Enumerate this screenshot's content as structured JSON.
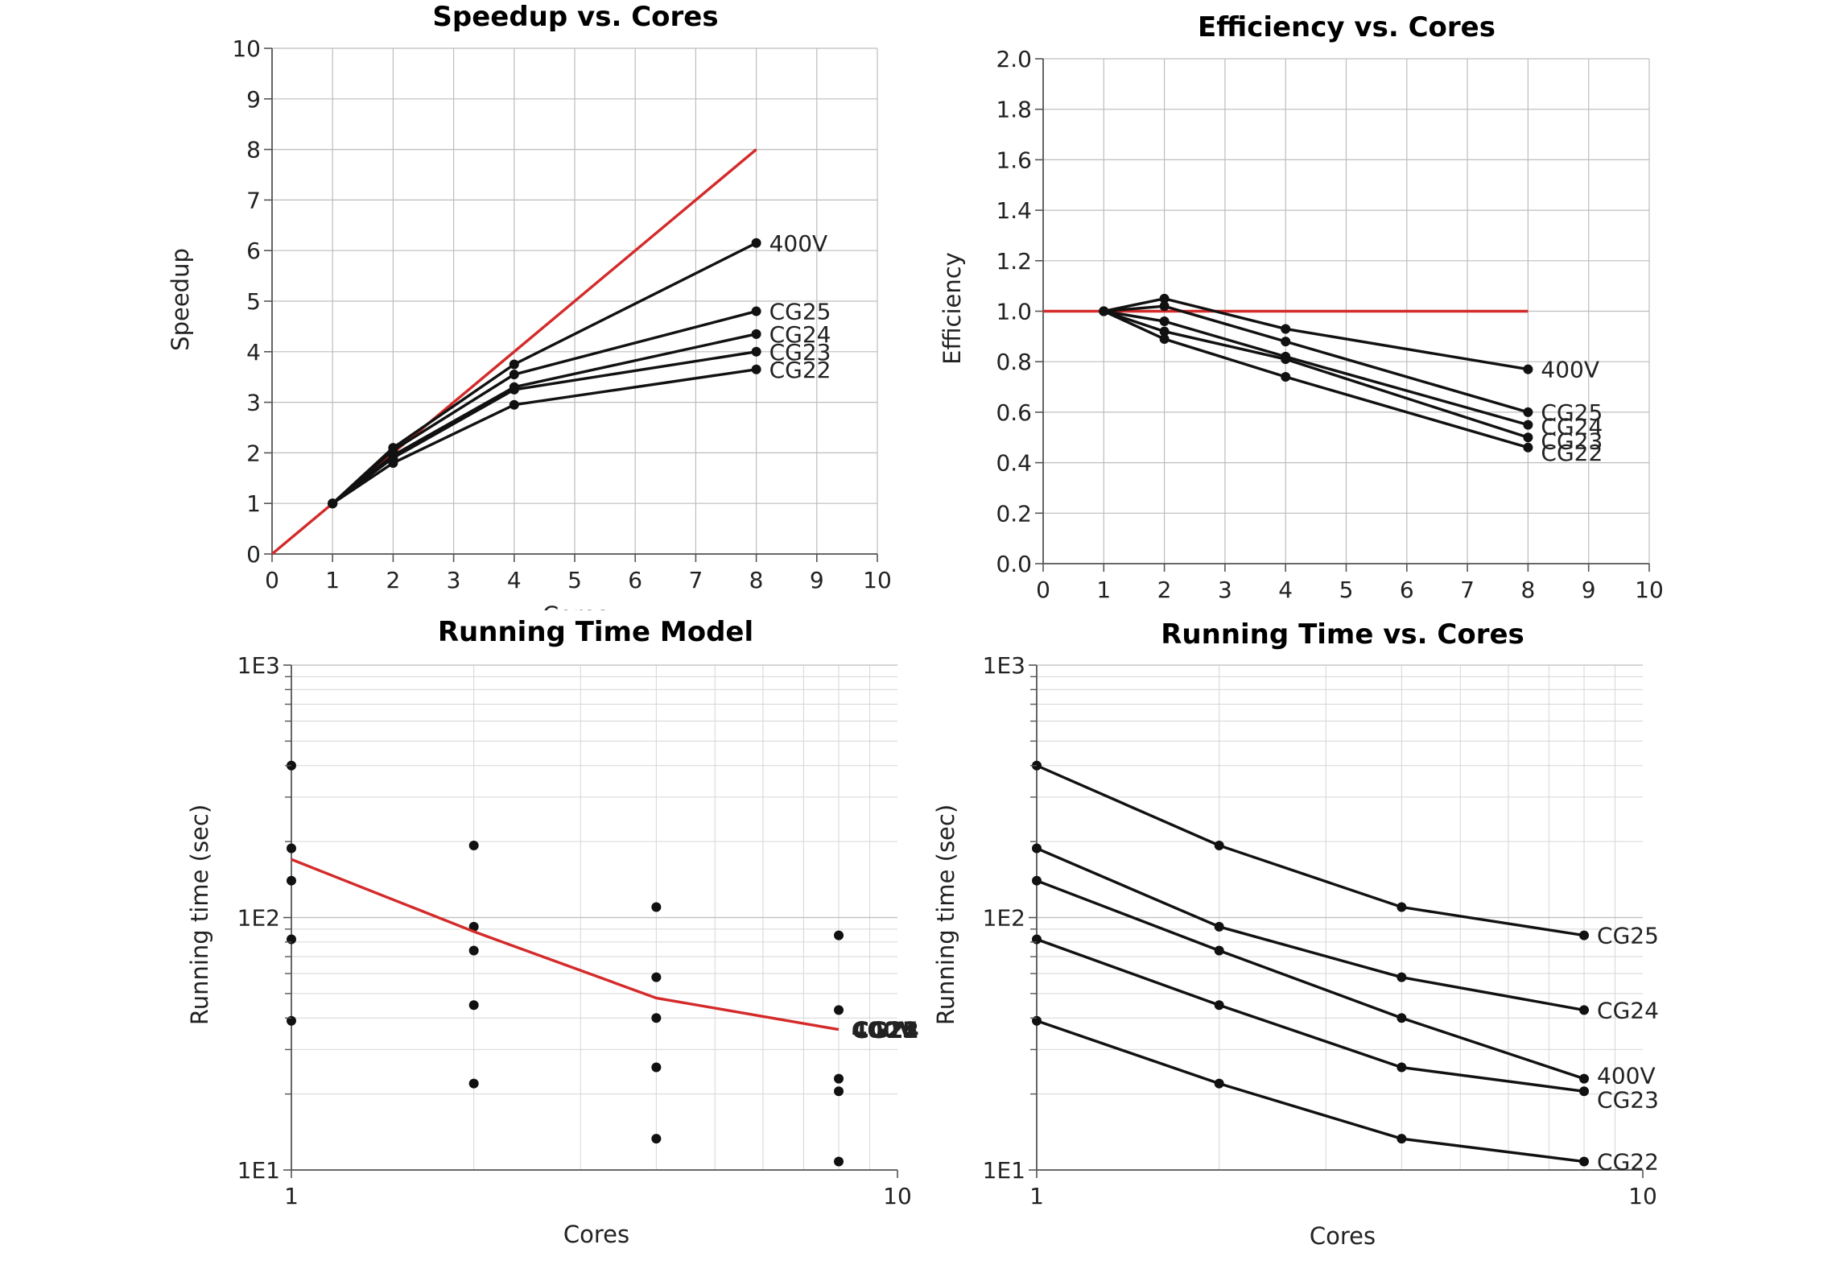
{
  "chart_data": [
    {
      "id": "speedup",
      "type": "line",
      "title": "Speedup vs. Cores",
      "xlabel": "Cores",
      "ylabel": "Speedup",
      "xscale": "linear",
      "yscale": "linear",
      "xlim": [
        0,
        10
      ],
      "ylim": [
        0,
        10
      ],
      "xticks": [
        0,
        1,
        2,
        3,
        4,
        5,
        6,
        7,
        8,
        9,
        10
      ],
      "yticks": [
        0,
        1,
        2,
        3,
        4,
        5,
        6,
        7,
        8,
        9,
        10
      ],
      "xtick_labels": [
        "0",
        "1",
        "2",
        "3",
        "4",
        "5",
        "6",
        "7",
        "8",
        "9",
        "10"
      ],
      "ytick_labels": [
        "0",
        "1",
        "2",
        "3",
        "4",
        "5",
        "6",
        "7",
        "8",
        "9",
        "10"
      ],
      "grid": true,
      "reference": {
        "x": [
          0,
          8
        ],
        "y": [
          0,
          8
        ],
        "color": "#d42a2a"
      },
      "series": [
        {
          "name": "400V",
          "x": [
            1,
            2,
            4,
            8
          ],
          "y": [
            1.0,
            2.1,
            3.75,
            6.15
          ]
        },
        {
          "name": "CG25",
          "x": [
            1,
            2,
            4,
            8
          ],
          "y": [
            1.0,
            2.05,
            3.55,
            4.8
          ]
        },
        {
          "name": "CG24",
          "x": [
            1,
            2,
            4,
            8
          ],
          "y": [
            1.0,
            1.95,
            3.3,
            4.35
          ]
        },
        {
          "name": "CG23",
          "x": [
            1,
            2,
            4,
            8
          ],
          "y": [
            1.0,
            1.9,
            3.25,
            4.0
          ]
        },
        {
          "name": "CG22",
          "x": [
            1,
            2,
            4,
            8
          ],
          "y": [
            1.0,
            1.8,
            2.95,
            3.65
          ]
        }
      ]
    },
    {
      "id": "efficiency",
      "type": "line",
      "title": "Efficiency vs. Cores",
      "xlabel": "",
      "ylabel": "Efficiency",
      "xscale": "linear",
      "yscale": "linear",
      "xlim": [
        0,
        10
      ],
      "ylim": [
        0,
        2.0
      ],
      "xticks": [
        0,
        1,
        2,
        3,
        4,
        5,
        6,
        7,
        8,
        9,
        10
      ],
      "yticks": [
        0,
        0.2,
        0.4,
        0.6,
        0.8,
        1.0,
        1.2,
        1.4,
        1.6,
        1.8,
        2.0
      ],
      "xtick_labels": [
        "0",
        "1",
        "2",
        "3",
        "4",
        "5",
        "6",
        "7",
        "8",
        "9",
        "10"
      ],
      "ytick_labels": [
        "0.0",
        "0.2",
        "0.4",
        "0.6",
        "0.8",
        "1.0",
        "1.2",
        "1.4",
        "1.6",
        "1.8",
        "2.0"
      ],
      "grid": true,
      "reference": {
        "x": [
          0,
          8
        ],
        "y": [
          1.0,
          1.0
        ],
        "color": "#d42a2a"
      },
      "series": [
        {
          "name": "400V",
          "x": [
            1,
            2,
            4,
            8
          ],
          "y": [
            1.0,
            1.05,
            0.93,
            0.77
          ]
        },
        {
          "name": "CG25",
          "x": [
            1,
            2,
            4,
            8
          ],
          "y": [
            1.0,
            1.02,
            0.88,
            0.6
          ]
        },
        {
          "name": "CG24",
          "x": [
            1,
            2,
            4,
            8
          ],
          "y": [
            1.0,
            0.96,
            0.82,
            0.55
          ]
        },
        {
          "name": "CG23",
          "x": [
            1,
            2,
            4,
            8
          ],
          "y": [
            1.0,
            0.92,
            0.81,
            0.5
          ]
        },
        {
          "name": "CG22",
          "x": [
            1,
            2,
            4,
            8
          ],
          "y": [
            1.0,
            0.89,
            0.74,
            0.46
          ]
        }
      ]
    },
    {
      "id": "model",
      "type": "scatter",
      "title": "Running Time Model",
      "xlabel": "Cores",
      "ylabel": "Running time (sec)",
      "xscale": "log",
      "yscale": "log",
      "xlim": [
        1,
        10
      ],
      "ylim": [
        10,
        1000
      ],
      "xticks": [
        1,
        10
      ],
      "yticks": [
        10,
        100,
        1000
      ],
      "xtick_labels": [
        "1",
        "10"
      ],
      "ytick_labels": [
        "1E1",
        "1E2",
        "1E3"
      ],
      "grid": true,
      "model_line": {
        "x": [
          1,
          2,
          4,
          8
        ],
        "y": [
          170,
          88,
          48,
          36
        ],
        "color": "#d42a2a"
      },
      "points": [
        {
          "x": 1,
          "y": 400
        },
        {
          "x": 1,
          "y": 188
        },
        {
          "x": 1,
          "y": 140
        },
        {
          "x": 1,
          "y": 82
        },
        {
          "x": 1,
          "y": 39
        },
        {
          "x": 2,
          "y": 193
        },
        {
          "x": 2,
          "y": 92
        },
        {
          "x": 2,
          "y": 74
        },
        {
          "x": 2,
          "y": 45
        },
        {
          "x": 2,
          "y": 22
        },
        {
          "x": 4,
          "y": 110
        },
        {
          "x": 4,
          "y": 58
        },
        {
          "x": 4,
          "y": 40
        },
        {
          "x": 4,
          "y": 25.5
        },
        {
          "x": 4,
          "y": 13.3
        },
        {
          "x": 8,
          "y": 85
        },
        {
          "x": 8,
          "y": 43
        },
        {
          "x": 8,
          "y": 23
        },
        {
          "x": 8,
          "y": 20.5
        },
        {
          "x": 8,
          "y": 10.8
        }
      ],
      "end_labels": [
        "CG25",
        "CG24",
        "CG23",
        "CG22",
        "400V"
      ]
    },
    {
      "id": "running",
      "type": "line",
      "title": "Running Time vs. Cores",
      "xlabel": "Cores",
      "ylabel": "Running time (sec)",
      "xscale": "log",
      "yscale": "log",
      "xlim": [
        1,
        10
      ],
      "ylim": [
        10,
        1000
      ],
      "xticks": [
        1,
        10
      ],
      "yticks": [
        10,
        100,
        1000
      ],
      "xtick_labels": [
        "1",
        "10"
      ],
      "ytick_labels": [
        "1E1",
        "1E2",
        "1E3"
      ],
      "grid": true,
      "series": [
        {
          "name": "CG25",
          "x": [
            1,
            2,
            4,
            8
          ],
          "y": [
            400,
            193,
            110,
            85
          ]
        },
        {
          "name": "CG24",
          "x": [
            1,
            2,
            4,
            8
          ],
          "y": [
            188,
            92,
            58,
            43
          ]
        },
        {
          "name": "400V",
          "x": [
            1,
            2,
            4,
            8
          ],
          "y": [
            140,
            74,
            40,
            23
          ]
        },
        {
          "name": "CG23",
          "x": [
            1,
            2,
            4,
            8
          ],
          "y": [
            82,
            45,
            25.5,
            20.5
          ]
        },
        {
          "name": "CG22",
          "x": [
            1,
            2,
            4,
            8
          ],
          "y": [
            39,
            22,
            13.3,
            10.8
          ]
        }
      ]
    }
  ]
}
